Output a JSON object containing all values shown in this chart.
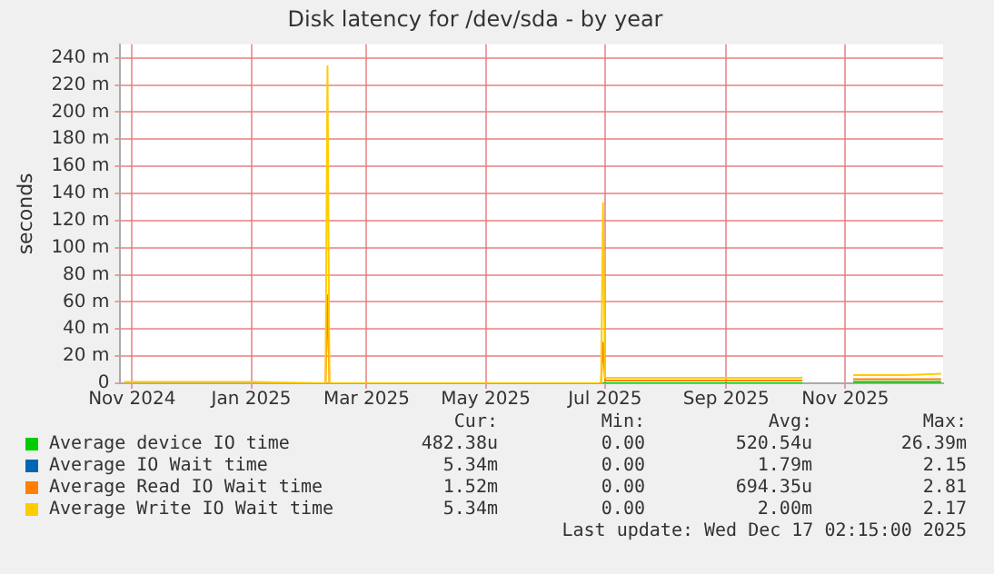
{
  "chart_data": {
    "type": "line",
    "title": "Disk latency for /dev/sda - by year",
    "ylabel": "seconds",
    "xlim": [
      "2024-10-26",
      "2025-12-21"
    ],
    "xticks": [
      {
        "value": "2024-11-01",
        "label": "Nov 2024"
      },
      {
        "value": "2025-01-01",
        "label": "Jan 2025"
      },
      {
        "value": "2025-03-01",
        "label": "Mar 2025"
      },
      {
        "value": "2025-05-01",
        "label": "May 2025"
      },
      {
        "value": "2025-07-01",
        "label": "Jul 2025"
      },
      {
        "value": "2025-09-01",
        "label": "Sep 2025"
      },
      {
        "value": "2025-11-01",
        "label": "Nov 2025"
      }
    ],
    "ylim": [
      0,
      250
    ],
    "yticks": [
      {
        "value": 0,
        "label": "0"
      },
      {
        "value": 20,
        "label": "20 m"
      },
      {
        "value": 40,
        "label": "40 m"
      },
      {
        "value": 60,
        "label": "60 m"
      },
      {
        "value": 80,
        "label": "80 m"
      },
      {
        "value": 100,
        "label": "100 m"
      },
      {
        "value": 120,
        "label": "120 m"
      },
      {
        "value": 140,
        "label": "140 m"
      },
      {
        "value": 160,
        "label": "160 m"
      },
      {
        "value": 180,
        "label": "180 m"
      },
      {
        "value": 200,
        "label": "200 m"
      },
      {
        "value": 220,
        "label": "220 m"
      },
      {
        "value": 240,
        "label": "240 m"
      }
    ],
    "grid": true,
    "legend": "bottom",
    "marker": "none",
    "line_style": "solid",
    "x": [
      "2024-10-28",
      "2024-11-10",
      "2024-12-01",
      "2024-12-20",
      "2025-01-01",
      "2025-02-08",
      "2025-02-09",
      "2025-02-10",
      "2025-04-01",
      "2025-06-29",
      "2025-06-30",
      "2025-07-01",
      "2025-08-01",
      "2025-09-01",
      "2025-10-01",
      "2025-10-10",
      "2025-10-11",
      "2025-11-04",
      "2025-11-05",
      "2025-12-01",
      "2025-12-20"
    ],
    "series": [
      {
        "name": "Average device IO time",
        "color": "#00cc00",
        "values": [
          null,
          null,
          null,
          null,
          null,
          null,
          null,
          null,
          null,
          null,
          0,
          0,
          0,
          0,
          0,
          0,
          null,
          null,
          1,
          1,
          1
        ]
      },
      {
        "name": "Average IO Wait time",
        "color": "#0066b3",
        "values": [
          null,
          null,
          null,
          null,
          null,
          null,
          null,
          null,
          null,
          null,
          null,
          null,
          null,
          null,
          null,
          null,
          null,
          null,
          null,
          null,
          null
        ]
      },
      {
        "name": "Average Read IO Wait time",
        "color": "#ff8000",
        "values": [
          null,
          null,
          null,
          null,
          null,
          0,
          65,
          0,
          null,
          0,
          30,
          2,
          2,
          2,
          2,
          2,
          null,
          null,
          3,
          3,
          3
        ]
      },
      {
        "name": "Average Write IO Wait time",
        "color": "#ffcc00",
        "values": [
          1,
          1,
          1,
          1,
          1,
          0,
          234,
          0,
          0,
          0,
          133,
          4,
          4,
          4,
          4,
          4,
          null,
          null,
          6,
          6,
          7
        ]
      }
    ],
    "annotations": [
      "Cur:",
      "Min:",
      "Avg:",
      "Max:",
      "482.38u",
      "0.00",
      "520.54u",
      "26.39m",
      "5.34m",
      "0.00",
      "1.79m",
      "2.15",
      "1.52m",
      "0.00",
      "694.35u",
      "2.81",
      "5.34m",
      "0.00",
      "2.00m",
      "2.17",
      "Last update: Wed Dec 17 02:15:00 2025"
    ]
  }
}
